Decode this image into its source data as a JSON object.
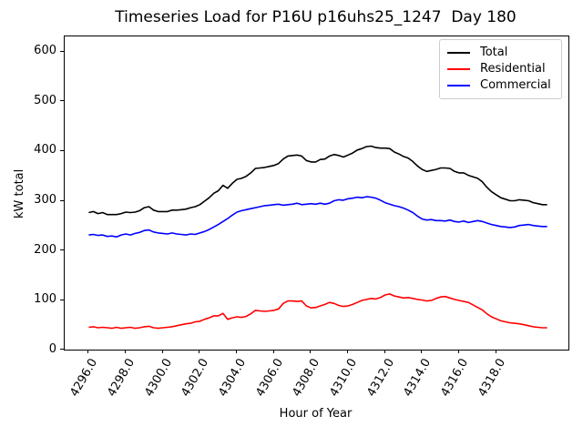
{
  "title": "Timeseries Load for P16U p16uhs25_1247  Day 180",
  "chart_data": {
    "type": "line",
    "title": "Timeseries Load for P16U p16uhs25_1247  Day 180",
    "xlabel": "Hour of Year",
    "ylabel": "kW total",
    "xlim": [
      4294.7,
      4321.9
    ],
    "ylim": [
      0,
      631
    ],
    "x_start": 4296.0,
    "x_step": 0.25,
    "x_ticks": [
      4296.0,
      4298.0,
      4300.0,
      4302.0,
      4304.0,
      4306.0,
      4308.0,
      4310.0,
      4312.0,
      4314.0,
      4316.0,
      4318.0
    ],
    "y_ticks": [
      0,
      100,
      200,
      300,
      400,
      500,
      600
    ],
    "grid": false,
    "legend_position": "upper right",
    "legend_entries": [
      "Total",
      "Residential",
      "Commercial"
    ],
    "series": [
      {
        "name": "Total",
        "color": "#000000",
        "values": [
          276,
          278,
          274,
          276,
          272,
          272,
          272,
          274,
          277,
          276,
          277,
          280,
          286,
          288,
          281,
          278,
          278,
          278,
          281,
          281,
          282,
          283,
          286,
          288,
          292,
          299,
          306,
          315,
          320,
          331,
          325,
          335,
          343,
          345,
          349,
          356,
          365,
          366,
          367,
          369,
          371,
          375,
          384,
          390,
          391,
          392,
          390,
          381,
          378,
          378,
          383,
          384,
          390,
          393,
          391,
          388,
          392,
          396,
          402,
          405,
          409,
          410,
          407,
          406,
          406,
          405,
          398,
          394,
          389,
          386,
          379,
          370,
          363,
          359,
          361,
          363,
          366,
          366,
          365,
          359,
          356,
          356,
          351,
          348,
          345,
          338,
          327,
          318,
          312,
          306,
          303,
          300,
          300,
          302,
          301,
          300,
          296,
          294,
          292,
          292
        ]
      },
      {
        "name": "Residential",
        "color": "#ff0000",
        "values": [
          45,
          46,
          44,
          45,
          44,
          43,
          45,
          43,
          44,
          45,
          43,
          44,
          46,
          47,
          44,
          43,
          44,
          45,
          46,
          48,
          50,
          52,
          53,
          56,
          57,
          61,
          64,
          68,
          68,
          73,
          61,
          64,
          66,
          65,
          67,
          72,
          79,
          78,
          77,
          78,
          79,
          82,
          93,
          98,
          98,
          97,
          98,
          88,
          84,
          85,
          88,
          91,
          95,
          93,
          89,
          87,
          88,
          91,
          95,
          99,
          101,
          103,
          102,
          105,
          110,
          112,
          108,
          106,
          104,
          105,
          103,
          101,
          100,
          98,
          99,
          103,
          106,
          107,
          104,
          101,
          99,
          97,
          95,
          90,
          85,
          80,
          72,
          66,
          62,
          58,
          56,
          54,
          53,
          52,
          50,
          48,
          46,
          45,
          44,
          44
        ]
      },
      {
        "name": "Commercial",
        "color": "#0000ff",
        "values": [
          231,
          232,
          230,
          231,
          228,
          229,
          227,
          231,
          233,
          231,
          234,
          236,
          240,
          241,
          237,
          235,
          234,
          233,
          235,
          233,
          232,
          231,
          233,
          232,
          235,
          238,
          242,
          247,
          252,
          258,
          264,
          271,
          277,
          280,
          282,
          284,
          286,
          288,
          290,
          291,
          292,
          293,
          291,
          292,
          293,
          295,
          292,
          293,
          294,
          293,
          295,
          293,
          295,
          300,
          302,
          301,
          304,
          305,
          307,
          306,
          308,
          307,
          305,
          301,
          296,
          293,
          290,
          288,
          285,
          281,
          276,
          269,
          263,
          261,
          262,
          260,
          260,
          259,
          261,
          258,
          257,
          259,
          256,
          258,
          260,
          258,
          255,
          252,
          250,
          248,
          247,
          246,
          247,
          250,
          251,
          252,
          250,
          249,
          248,
          248
        ]
      }
    ]
  }
}
